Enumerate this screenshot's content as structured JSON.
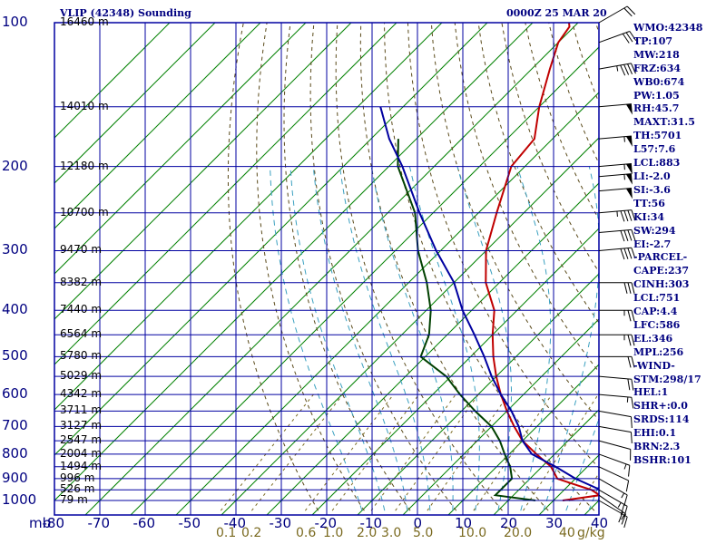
{
  "header": {
    "station": "VLIP (42348) Sounding",
    "time": "0000Z 25 MAR 20"
  },
  "stats": [
    "WMO:42348",
    "TP:107",
    "MW:218",
    "FRZ:634",
    "WB0:674",
    "PW:1.05",
    "RH:45.7",
    "MAXT:31.5",
    "TH:5701",
    "L57:7.6",
    "LCL:883",
    "LI:-2.0",
    "SI:-3.6",
    "TT:56",
    "KI:34",
    "SW:294",
    "EI:-2.7",
    "-PARCEL-",
    "CAPE:237",
    "CINH:303",
    "LCL:751",
    "CAP:4.4",
    "LFC:586",
    "EL:346",
    "MPL:256",
    "-WIND-",
    "STM:298/17",
    "HEL:1",
    "SHR+:0.0",
    "SRDS:114",
    "EHI:0.1",
    "BRN:2.3",
    "BSHR:101"
  ],
  "chart_data": {
    "type": "line",
    "title": "VLIP (42348) Sounding",
    "subtitle": "0000Z 25 MAR 20",
    "x_axis": {
      "unit_label": "mb",
      "ticks": [
        -80,
        -70,
        -60,
        -50,
        -40,
        -30,
        -20,
        -10,
        0,
        10,
        20,
        30,
        40
      ],
      "tick_labels": [
        "-80",
        "-70",
        "-60",
        "-50",
        "-40",
        "-30",
        "-20",
        "-10",
        "0",
        "10",
        "20",
        "30",
        "40"
      ],
      "range": [
        -80,
        40
      ]
    },
    "y_axis": {
      "scale": "log",
      "range": [
        1000,
        100
      ],
      "pressure_ticks": [
        100,
        200,
        300,
        400,
        500,
        600,
        700,
        800,
        900,
        1000
      ],
      "pressure_tick_labels": [
        "100",
        "200",
        "300",
        "400",
        "500",
        "600",
        "700",
        "800",
        "900",
        "1000"
      ]
    },
    "height_labels": [
      {
        "p": 100,
        "text": "16460 m"
      },
      {
        "p": 150,
        "text": "14010 m"
      },
      {
        "p": 200,
        "text": "12180 m"
      },
      {
        "p": 250,
        "text": "10700 m"
      },
      {
        "p": 300,
        "text": "9470 m"
      },
      {
        "p": 350,
        "text": "8382 m"
      },
      {
        "p": 400,
        "text": "7440 m"
      },
      {
        "p": 450,
        "text": "6564 m"
      },
      {
        "p": 500,
        "text": "5780 m"
      },
      {
        "p": 550,
        "text": "5029 m"
      },
      {
        "p": 600,
        "text": "4342 m"
      },
      {
        "p": 650,
        "text": "3711 m"
      },
      {
        "p": 700,
        "text": "3127 m"
      },
      {
        "p": 750,
        "text": "2547 m"
      },
      {
        "p": 800,
        "text": "2004 m"
      },
      {
        "p": 850,
        "text": "1494 m"
      },
      {
        "p": 900,
        "text": "996 m"
      },
      {
        "p": 950,
        "text": "526 m"
      },
      {
        "p": 1000,
        "text": "79 m"
      }
    ],
    "mixing_ratio_labels": [
      "0.1",
      "0.2",
      "0.6",
      "1.0",
      "2.0",
      "3.0",
      "5.0",
      "10.0",
      "20.0",
      "40",
      "g/kg"
    ],
    "series": [
      {
        "role": "temperature",
        "color": "#c00000",
        "points": [
          [
            1000,
            32
          ],
          [
            975,
            39
          ],
          [
            950,
            36
          ],
          [
            925,
            31
          ],
          [
            900,
            26
          ],
          [
            850,
            22
          ],
          [
            800,
            16
          ],
          [
            750,
            10
          ],
          [
            700,
            5
          ],
          [
            650,
            0
          ],
          [
            600,
            -5
          ],
          [
            550,
            -10
          ],
          [
            500,
            -15
          ],
          [
            450,
            -20
          ],
          [
            400,
            -25
          ],
          [
            350,
            -33
          ],
          [
            300,
            -40
          ],
          [
            250,
            -46
          ],
          [
            200,
            -53
          ],
          [
            175,
            -54
          ],
          [
            150,
            -60
          ],
          [
            125,
            -66
          ],
          [
            110,
            -70
          ],
          [
            102,
            -71
          ],
          [
            100,
            -72
          ]
        ]
      },
      {
        "role": "dewpoint",
        "color": "#004000",
        "points": [
          [
            1000,
            26
          ],
          [
            975,
            16
          ],
          [
            950,
            16
          ],
          [
            925,
            16
          ],
          [
            900,
            16
          ],
          [
            850,
            13
          ],
          [
            800,
            9
          ],
          [
            750,
            5
          ],
          [
            700,
            0
          ],
          [
            650,
            -7
          ],
          [
            600,
            -14
          ],
          [
            550,
            -21
          ],
          [
            500,
            -31
          ],
          [
            450,
            -34
          ],
          [
            400,
            -39
          ],
          [
            350,
            -46
          ],
          [
            300,
            -55
          ],
          [
            250,
            -64
          ],
          [
            200,
            -78
          ],
          [
            175,
            -84
          ]
        ]
      },
      {
        "role": "parcel",
        "color": "#0000a0",
        "points": [
          [
            1000,
            40
          ],
          [
            950,
            38
          ],
          [
            900,
            30
          ],
          [
            850,
            23
          ],
          [
            800,
            15
          ],
          [
            750,
            10
          ],
          [
            700,
            6
          ],
          [
            650,
            1
          ],
          [
            600,
            -5
          ],
          [
            550,
            -11
          ],
          [
            500,
            -17
          ],
          [
            450,
            -24
          ],
          [
            400,
            -32
          ],
          [
            350,
            -40
          ],
          [
            300,
            -51
          ],
          [
            250,
            -63
          ],
          [
            200,
            -77
          ],
          [
            175,
            -86
          ],
          [
            150,
            -95
          ]
        ]
      }
    ],
    "wind_barbs": [
      {
        "p": 1000,
        "dir": 300,
        "spd": 15
      },
      {
        "p": 975,
        "dir": 305,
        "spd": 20
      },
      {
        "p": 950,
        "dir": 300,
        "spd": 25
      },
      {
        "p": 900,
        "dir": 300,
        "spd": 15
      },
      {
        "p": 850,
        "dir": 295,
        "spd": 10
      },
      {
        "p": 800,
        "dir": 290,
        "spd": 15
      },
      {
        "p": 750,
        "dir": 285,
        "spd": 10
      },
      {
        "p": 700,
        "dir": 280,
        "spd": 10
      },
      {
        "p": 650,
        "dir": 280,
        "spd": 10
      },
      {
        "p": 600,
        "dir": 275,
        "spd": 15
      },
      {
        "p": 550,
        "dir": 275,
        "spd": 20
      },
      {
        "p": 500,
        "dir": 270,
        "spd": 20
      },
      {
        "p": 450,
        "dir": 270,
        "spd": 25
      },
      {
        "p": 400,
        "dir": 270,
        "spd": 25
      },
      {
        "p": 350,
        "dir": 270,
        "spd": 30
      },
      {
        "p": 300,
        "dir": 265,
        "spd": 40
      },
      {
        "p": 275,
        "dir": 265,
        "spd": 40
      },
      {
        "p": 250,
        "dir": 265,
        "spd": 45
      },
      {
        "p": 225,
        "dir": 265,
        "spd": 50
      },
      {
        "p": 210,
        "dir": 265,
        "spd": 55
      },
      {
        "p": 200,
        "dir": 265,
        "spd": 55
      },
      {
        "p": 175,
        "dir": 265,
        "spd": 55
      },
      {
        "p": 150,
        "dir": 265,
        "spd": 50
      },
      {
        "p": 125,
        "dir": 260,
        "spd": 45
      },
      {
        "p": 110,
        "dir": 250,
        "spd": 30
      },
      {
        "p": 100,
        "dir": 240,
        "spd": 20
      }
    ],
    "colors": {
      "frame": "#0000a0",
      "isotherm": "#008000",
      "dry_adiabat": "#5a4a1a",
      "moist_adiabat": "#3aa0c0",
      "mixing_ratio": "#7a6a20"
    },
    "grid": true
  }
}
